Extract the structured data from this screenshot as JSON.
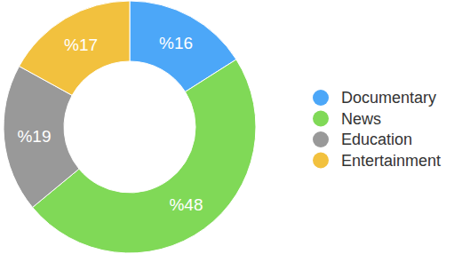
{
  "chart_data": {
    "type": "pie",
    "categories": [
      "Documentary",
      "News",
      "Education",
      "Entertainment"
    ],
    "values": [
      16,
      48,
      19,
      17
    ],
    "value_labels": [
      "%16",
      "%48",
      "%19",
      "%17"
    ],
    "colors": [
      "#4ca7f8",
      "#80d957",
      "#999999",
      "#f2c13e"
    ],
    "data_labels": true,
    "legend": "right"
  }
}
